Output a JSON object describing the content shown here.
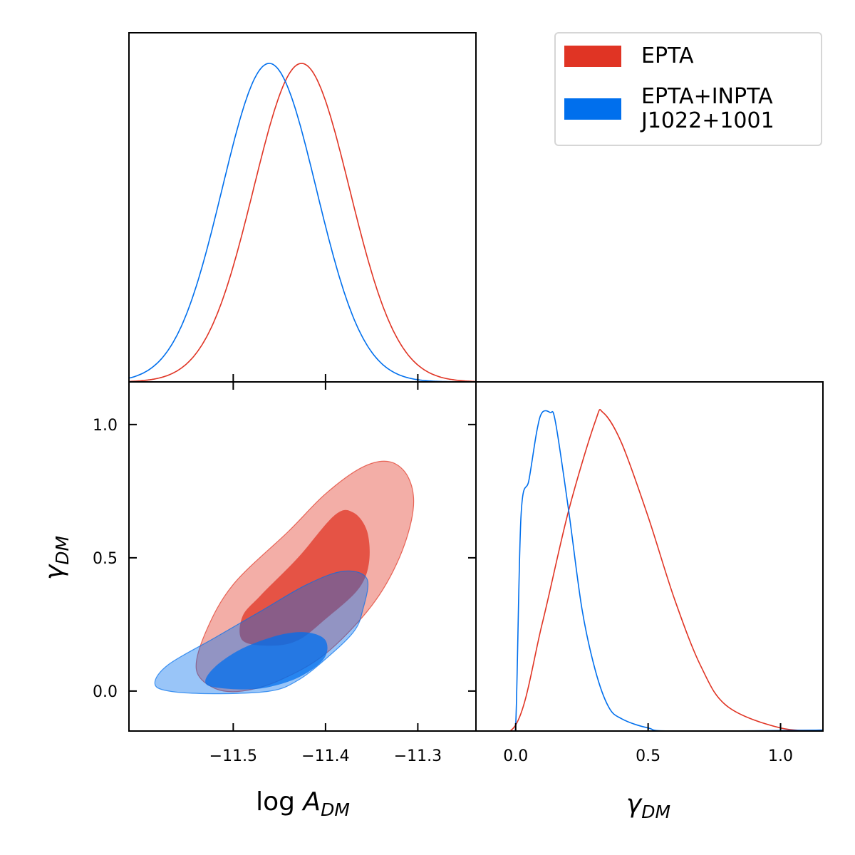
{
  "chart_data": {
    "type": "corner",
    "parameters": [
      {
        "name": "log A_DM",
        "label_main": "log",
        "label_sym": "A",
        "label_sub": "DM",
        "ticks": [
          -11.5,
          -11.4,
          -11.3
        ],
        "tick_labels": [
          "−11.5",
          "−11.4",
          "−11.3"
        ],
        "range": [
          -11.613,
          -11.237
        ]
      },
      {
        "name": "gamma_DM",
        "label_sym": "γ",
        "label_sub": "DM",
        "ticks": [
          0.0,
          0.5,
          1.0
        ],
        "tick_labels": [
          "0.0",
          "0.5",
          "1.0"
        ],
        "range": [
          -0.15,
          1.16
        ]
      }
    ],
    "series": [
      {
        "name": "EPTA",
        "color": "#e03424",
        "logA": {
          "mean": -11.426,
          "sigma": 0.052
        },
        "gamma_marginal": {
          "x": [
            0.0,
            0.1,
            0.2,
            0.3,
            0.33,
            0.4,
            0.5,
            0.6,
            0.7,
            0.8,
            1.0
          ],
          "y": [
            0.02,
            0.35,
            0.72,
            1.01,
            1.04,
            0.94,
            0.7,
            0.43,
            0.21,
            0.08,
            0.01
          ]
        },
        "contour_68": [
          [
            -11.49,
            0.28
          ],
          [
            -11.47,
            0.36
          ],
          [
            -11.43,
            0.5
          ],
          [
            -11.39,
            0.66
          ],
          [
            -11.37,
            0.67
          ],
          [
            -11.355,
            0.6
          ],
          [
            -11.353,
            0.48
          ],
          [
            -11.365,
            0.38
          ],
          [
            -11.4,
            0.27
          ],
          [
            -11.43,
            0.19
          ],
          [
            -11.46,
            0.17
          ],
          [
            -11.49,
            0.19
          ]
        ],
        "contour_95": [
          [
            -11.54,
            0.08
          ],
          [
            -11.53,
            0.22
          ],
          [
            -11.5,
            0.4
          ],
          [
            -11.44,
            0.6
          ],
          [
            -11.4,
            0.74
          ],
          [
            -11.36,
            0.84
          ],
          [
            -11.33,
            0.86
          ],
          [
            -11.31,
            0.8
          ],
          [
            -11.305,
            0.68
          ],
          [
            -11.32,
            0.5
          ],
          [
            -11.35,
            0.32
          ],
          [
            -11.4,
            0.14
          ],
          [
            -11.45,
            0.04
          ],
          [
            -11.49,
            0.0
          ],
          [
            -11.52,
            0.01
          ]
        ]
      },
      {
        "name": "EPTA+INPTA J1022+1001",
        "color": "#006fed",
        "logA": {
          "mean": -11.461,
          "sigma": 0.051
        },
        "gamma_marginal": {
          "x": [
            -0.02,
            0.0,
            0.02,
            0.05,
            0.08,
            0.1,
            0.13,
            0.15,
            0.2,
            0.25,
            0.3,
            0.35,
            0.4,
            0.5,
            0.6
          ],
          "y": [
            0.0,
            0.02,
            0.7,
            0.82,
            0.98,
            1.04,
            1.04,
            1.01,
            0.72,
            0.4,
            0.2,
            0.08,
            0.04,
            0.01,
            0.0
          ]
        },
        "contour_68": [
          [
            -11.53,
            0.03
          ],
          [
            -11.52,
            0.09
          ],
          [
            -11.49,
            0.16
          ],
          [
            -11.45,
            0.21
          ],
          [
            -11.42,
            0.22
          ],
          [
            -11.4,
            0.19
          ],
          [
            -11.402,
            0.12
          ],
          [
            -11.43,
            0.05
          ],
          [
            -11.47,
            0.01
          ],
          [
            -11.51,
            0.01
          ]
        ],
        "contour_95": [
          [
            -11.585,
            0.03
          ],
          [
            -11.57,
            0.1
          ],
          [
            -11.52,
            0.2
          ],
          [
            -11.47,
            0.3
          ],
          [
            -11.42,
            0.4
          ],
          [
            -11.38,
            0.45
          ],
          [
            -11.355,
            0.42
          ],
          [
            -11.36,
            0.3
          ],
          [
            -11.37,
            0.22
          ],
          [
            -11.4,
            0.12
          ],
          [
            -11.43,
            0.04
          ],
          [
            -11.46,
            0.0
          ],
          [
            -11.52,
            -0.01
          ],
          [
            -11.57,
            0.0
          ]
        ]
      }
    ],
    "legend_position": "top-right",
    "grid": false
  },
  "legend": [
    {
      "label": "EPTA",
      "color": "#e03424"
    },
    {
      "label": "EPTA+INPTA\nJ1022+1001",
      "color": "#006fed"
    }
  ]
}
